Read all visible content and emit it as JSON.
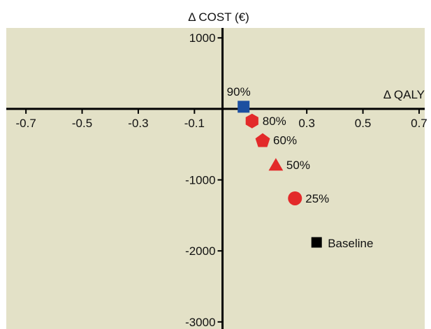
{
  "chart_data": {
    "type": "scatter",
    "title": "",
    "xlabel": "Δ QALY",
    "ylabel": "Δ COST (€)",
    "xlim": [
      -0.77,
      0.72
    ],
    "ylim": [
      -3100,
      1140
    ],
    "x_ticks": [
      -0.7,
      -0.5,
      -0.3,
      -0.1,
      0.3,
      0.5,
      0.7
    ],
    "x_tick_labels": [
      "-0.7",
      "-0.5",
      "-0.3",
      "-0.1",
      "0.3",
      "0.5",
      "0.7"
    ],
    "y_ticks": [
      1000,
      -1000,
      -2000,
      -3000
    ],
    "y_tick_labels": [
      "1000",
      "-1000",
      "-2000",
      "-3000"
    ],
    "grid": false,
    "background_color": "#e3e1c7",
    "points": [
      {
        "label": "90%",
        "x": 0.075,
        "y": 30,
        "marker": "square",
        "color": "#1c4fa0"
      },
      {
        "label": "80%",
        "x": 0.105,
        "y": -170,
        "marker": "hexagon",
        "color": "#e32a2a"
      },
      {
        "label": "60%",
        "x": 0.143,
        "y": -440,
        "marker": "pentagon",
        "color": "#e32a2a"
      },
      {
        "label": "50%",
        "x": 0.19,
        "y": -790,
        "marker": "triangle",
        "color": "#e32a2a"
      },
      {
        "label": "25%",
        "x": 0.258,
        "y": -1260,
        "marker": "circle",
        "color": "#e32a2a"
      },
      {
        "label": "Baseline",
        "x": 0.335,
        "y": -1880,
        "marker": "square",
        "color": "#000000"
      }
    ]
  }
}
